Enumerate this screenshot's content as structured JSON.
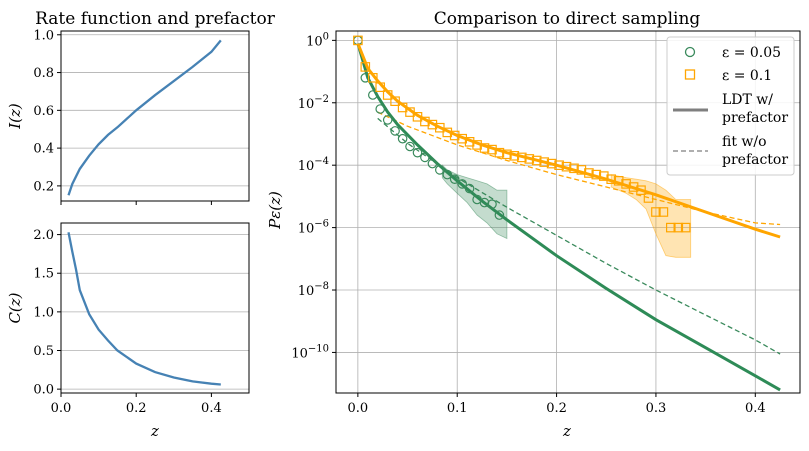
{
  "chart_data": [
    {
      "type": "line",
      "title": "Rate function and prefactor",
      "xlabel": "",
      "ylabel": "I(z)",
      "xlim": [
        0,
        0.5
      ],
      "ylim": [
        0.12,
        1.02
      ],
      "grid": true,
      "yticks": [
        "0.2",
        "0.4",
        "0.6",
        "0.8",
        "1.0"
      ],
      "ytick_values": [
        0.2,
        0.4,
        0.6,
        0.8,
        1.0
      ],
      "xtick_values": [
        0.0,
        0.2,
        0.4
      ],
      "series": [
        {
          "name": "I(z)",
          "color": "#4682b4",
          "x": [
            0.02,
            0.03,
            0.05,
            0.075,
            0.1,
            0.125,
            0.15,
            0.2,
            0.25,
            0.3,
            0.35,
            0.4,
            0.425
          ],
          "y": [
            0.15,
            0.21,
            0.29,
            0.36,
            0.42,
            0.47,
            0.51,
            0.6,
            0.68,
            0.755,
            0.83,
            0.91,
            0.97
          ]
        }
      ]
    },
    {
      "type": "line",
      "title": "",
      "xlabel": "z",
      "ylabel": "C(z)",
      "xlim": [
        0,
        0.5
      ],
      "ylim": [
        -0.05,
        2.15
      ],
      "grid": true,
      "yticks": [
        "0.0",
        "0.5",
        "1.0",
        "1.5",
        "2.0"
      ],
      "ytick_values": [
        0.0,
        0.5,
        1.0,
        1.5,
        2.0
      ],
      "xticks": [
        "0.0",
        "0.2",
        "0.4"
      ],
      "xtick_values": [
        0.0,
        0.2,
        0.4
      ],
      "series": [
        {
          "name": "C(z)",
          "color": "#4682b4",
          "x": [
            0.02,
            0.03,
            0.04,
            0.05,
            0.075,
            0.1,
            0.125,
            0.15,
            0.2,
            0.25,
            0.3,
            0.35,
            0.4,
            0.425
          ],
          "y": [
            2.03,
            1.78,
            1.55,
            1.28,
            0.97,
            0.77,
            0.63,
            0.5,
            0.33,
            0.22,
            0.15,
            0.1,
            0.07,
            0.06
          ]
        }
      ]
    },
    {
      "type": "line",
      "title": "Comparison to direct sampling",
      "xlabel": "z",
      "ylabel": "Pε(z)",
      "xscale": "linear",
      "yscale": "log",
      "xlim": [
        -0.022,
        0.445
      ],
      "ylim_log10": [
        -11.3,
        0.3
      ],
      "grid": true,
      "xticks": [
        "0.0",
        "0.1",
        "0.2",
        "0.3",
        "0.4"
      ],
      "xtick_values": [
        0.0,
        0.1,
        0.2,
        0.3,
        0.4
      ],
      "yticks_exponents": [
        0,
        -2,
        -4,
        -6,
        -8,
        -10
      ],
      "legend": {
        "position": "top-right",
        "eps005": "ε = 0.05",
        "eps01": "ε = 0.1",
        "ldt_line1": "LDT w/",
        "ldt_line2": "prefactor",
        "fit_line1": "fit w/o",
        "fit_line2": "prefactor"
      },
      "series": [
        {
          "name": "ε = 0.05 samples",
          "kind": "markers",
          "marker": "circle",
          "color": "#3a8a5c",
          "x": [
            0.0,
            0.0075,
            0.015,
            0.0225,
            0.03,
            0.0375,
            0.045,
            0.0525,
            0.06,
            0.0675,
            0.075,
            0.0825,
            0.09,
            0.0975,
            0.105,
            0.1125,
            0.12,
            0.1275,
            0.135,
            0.1425
          ],
          "log10_y": [
            0.0,
            -1.2,
            -1.75,
            -2.2,
            -2.55,
            -2.9,
            -3.15,
            -3.4,
            -3.6,
            -3.75,
            -3.95,
            -4.15,
            -4.3,
            -4.45,
            -4.6,
            -4.75,
            -5.1,
            -5.2,
            -5.25,
            -5.6
          ]
        },
        {
          "name": "ε = 0.05 band",
          "kind": "band",
          "color": "#3a8a5c",
          "x": [
            0.085,
            0.09,
            0.1,
            0.11,
            0.12,
            0.13,
            0.14,
            0.15
          ],
          "log10_lower": [
            -4.4,
            -4.6,
            -4.9,
            -5.2,
            -5.6,
            -5.85,
            -6.2,
            -6.35
          ],
          "log10_upper": [
            -4.0,
            -4.15,
            -4.3,
            -4.4,
            -4.5,
            -4.6,
            -4.8,
            -4.8
          ]
        },
        {
          "name": "ε = 0.1 samples",
          "kind": "markers",
          "marker": "square",
          "color": "#ffa500",
          "x": [
            0.0,
            0.0075,
            0.015,
            0.0225,
            0.03,
            0.0375,
            0.045,
            0.0525,
            0.06,
            0.0675,
            0.075,
            0.0825,
            0.09,
            0.0975,
            0.105,
            0.1125,
            0.12,
            0.1275,
            0.135,
            0.1425,
            0.15,
            0.1575,
            0.165,
            0.1725,
            0.18,
            0.1875,
            0.195,
            0.2025,
            0.21,
            0.2175,
            0.225,
            0.2325,
            0.24,
            0.2475,
            0.255,
            0.2625,
            0.27,
            0.2775,
            0.285,
            0.2925,
            0.3,
            0.3075,
            0.315,
            0.3225,
            0.33
          ],
          "log10_y": [
            0.0,
            -0.85,
            -1.2,
            -1.5,
            -1.75,
            -1.95,
            -2.15,
            -2.3,
            -2.45,
            -2.6,
            -2.7,
            -2.8,
            -2.95,
            -3.05,
            -3.15,
            -3.25,
            -3.35,
            -3.45,
            -3.5,
            -3.6,
            -3.65,
            -3.7,
            -3.75,
            -3.8,
            -3.85,
            -3.9,
            -3.95,
            -4.0,
            -4.05,
            -4.1,
            -4.15,
            -4.25,
            -4.3,
            -4.35,
            -4.45,
            -4.5,
            -4.6,
            -4.7,
            -4.8,
            -5.05,
            -5.5,
            -5.5,
            -6.0,
            -6.0,
            -6.0
          ]
        },
        {
          "name": "ε = 0.1 band",
          "kind": "band",
          "color": "#ffa500",
          "x": [
            0.255,
            0.27,
            0.28,
            0.29,
            0.3,
            0.31,
            0.32,
            0.335
          ],
          "log10_lower": [
            -4.7,
            -4.9,
            -5.1,
            -5.4,
            -6.2,
            -6.9,
            -6.95,
            -6.95
          ],
          "log10_upper": [
            -4.3,
            -4.4,
            -4.45,
            -4.5,
            -4.6,
            -4.8,
            -5.1,
            -5.1
          ]
        },
        {
          "name": "LDT w/ prefactor ε = 0.05",
          "kind": "line",
          "style": "solid",
          "color": "#2e8b57",
          "x": [
            0.0,
            0.01,
            0.02,
            0.03,
            0.04,
            0.06,
            0.08,
            0.1,
            0.125,
            0.15,
            0.2,
            0.25,
            0.3,
            0.35,
            0.4,
            0.425
          ],
          "log10_y": [
            -0.1,
            -1.2,
            -1.8,
            -2.3,
            -2.7,
            -3.35,
            -3.95,
            -4.5,
            -5.15,
            -5.75,
            -6.9,
            -7.95,
            -8.95,
            -9.85,
            -10.75,
            -11.2
          ]
        },
        {
          "name": "LDT w/ prefactor ε = 0.1",
          "kind": "line",
          "style": "solid",
          "color": "#ffa500",
          "x": [
            0.0,
            0.01,
            0.02,
            0.03,
            0.04,
            0.06,
            0.08,
            0.1,
            0.125,
            0.15,
            0.2,
            0.25,
            0.3,
            0.35,
            0.4,
            0.425
          ],
          "log10_y": [
            -0.1,
            -0.9,
            -1.3,
            -1.65,
            -1.95,
            -2.4,
            -2.75,
            -3.05,
            -3.35,
            -3.6,
            -4.0,
            -4.45,
            -4.95,
            -5.5,
            -6.05,
            -6.3
          ]
        },
        {
          "name": "fit w/o prefactor ε = 0.05",
          "kind": "line",
          "style": "dashed",
          "color": "#3a8a5c",
          "x": [
            0.02,
            0.05,
            0.1,
            0.15,
            0.2,
            0.25,
            0.3,
            0.35,
            0.4,
            0.425
          ],
          "log10_y": [
            -2.5,
            -3.3,
            -4.4,
            -5.35,
            -6.25,
            -7.15,
            -8.0,
            -8.8,
            -9.6,
            -10.05
          ]
        },
        {
          "name": "fit w/o prefactor ε = 0.1",
          "kind": "line",
          "style": "dashed",
          "color": "#ffa500",
          "x": [
            0.02,
            0.05,
            0.1,
            0.15,
            0.2,
            0.25,
            0.3,
            0.35,
            0.4,
            0.425
          ],
          "log10_y": [
            -2.3,
            -2.75,
            -3.35,
            -3.85,
            -4.3,
            -4.7,
            -5.1,
            -5.5,
            -5.85,
            -5.9
          ]
        }
      ]
    }
  ]
}
